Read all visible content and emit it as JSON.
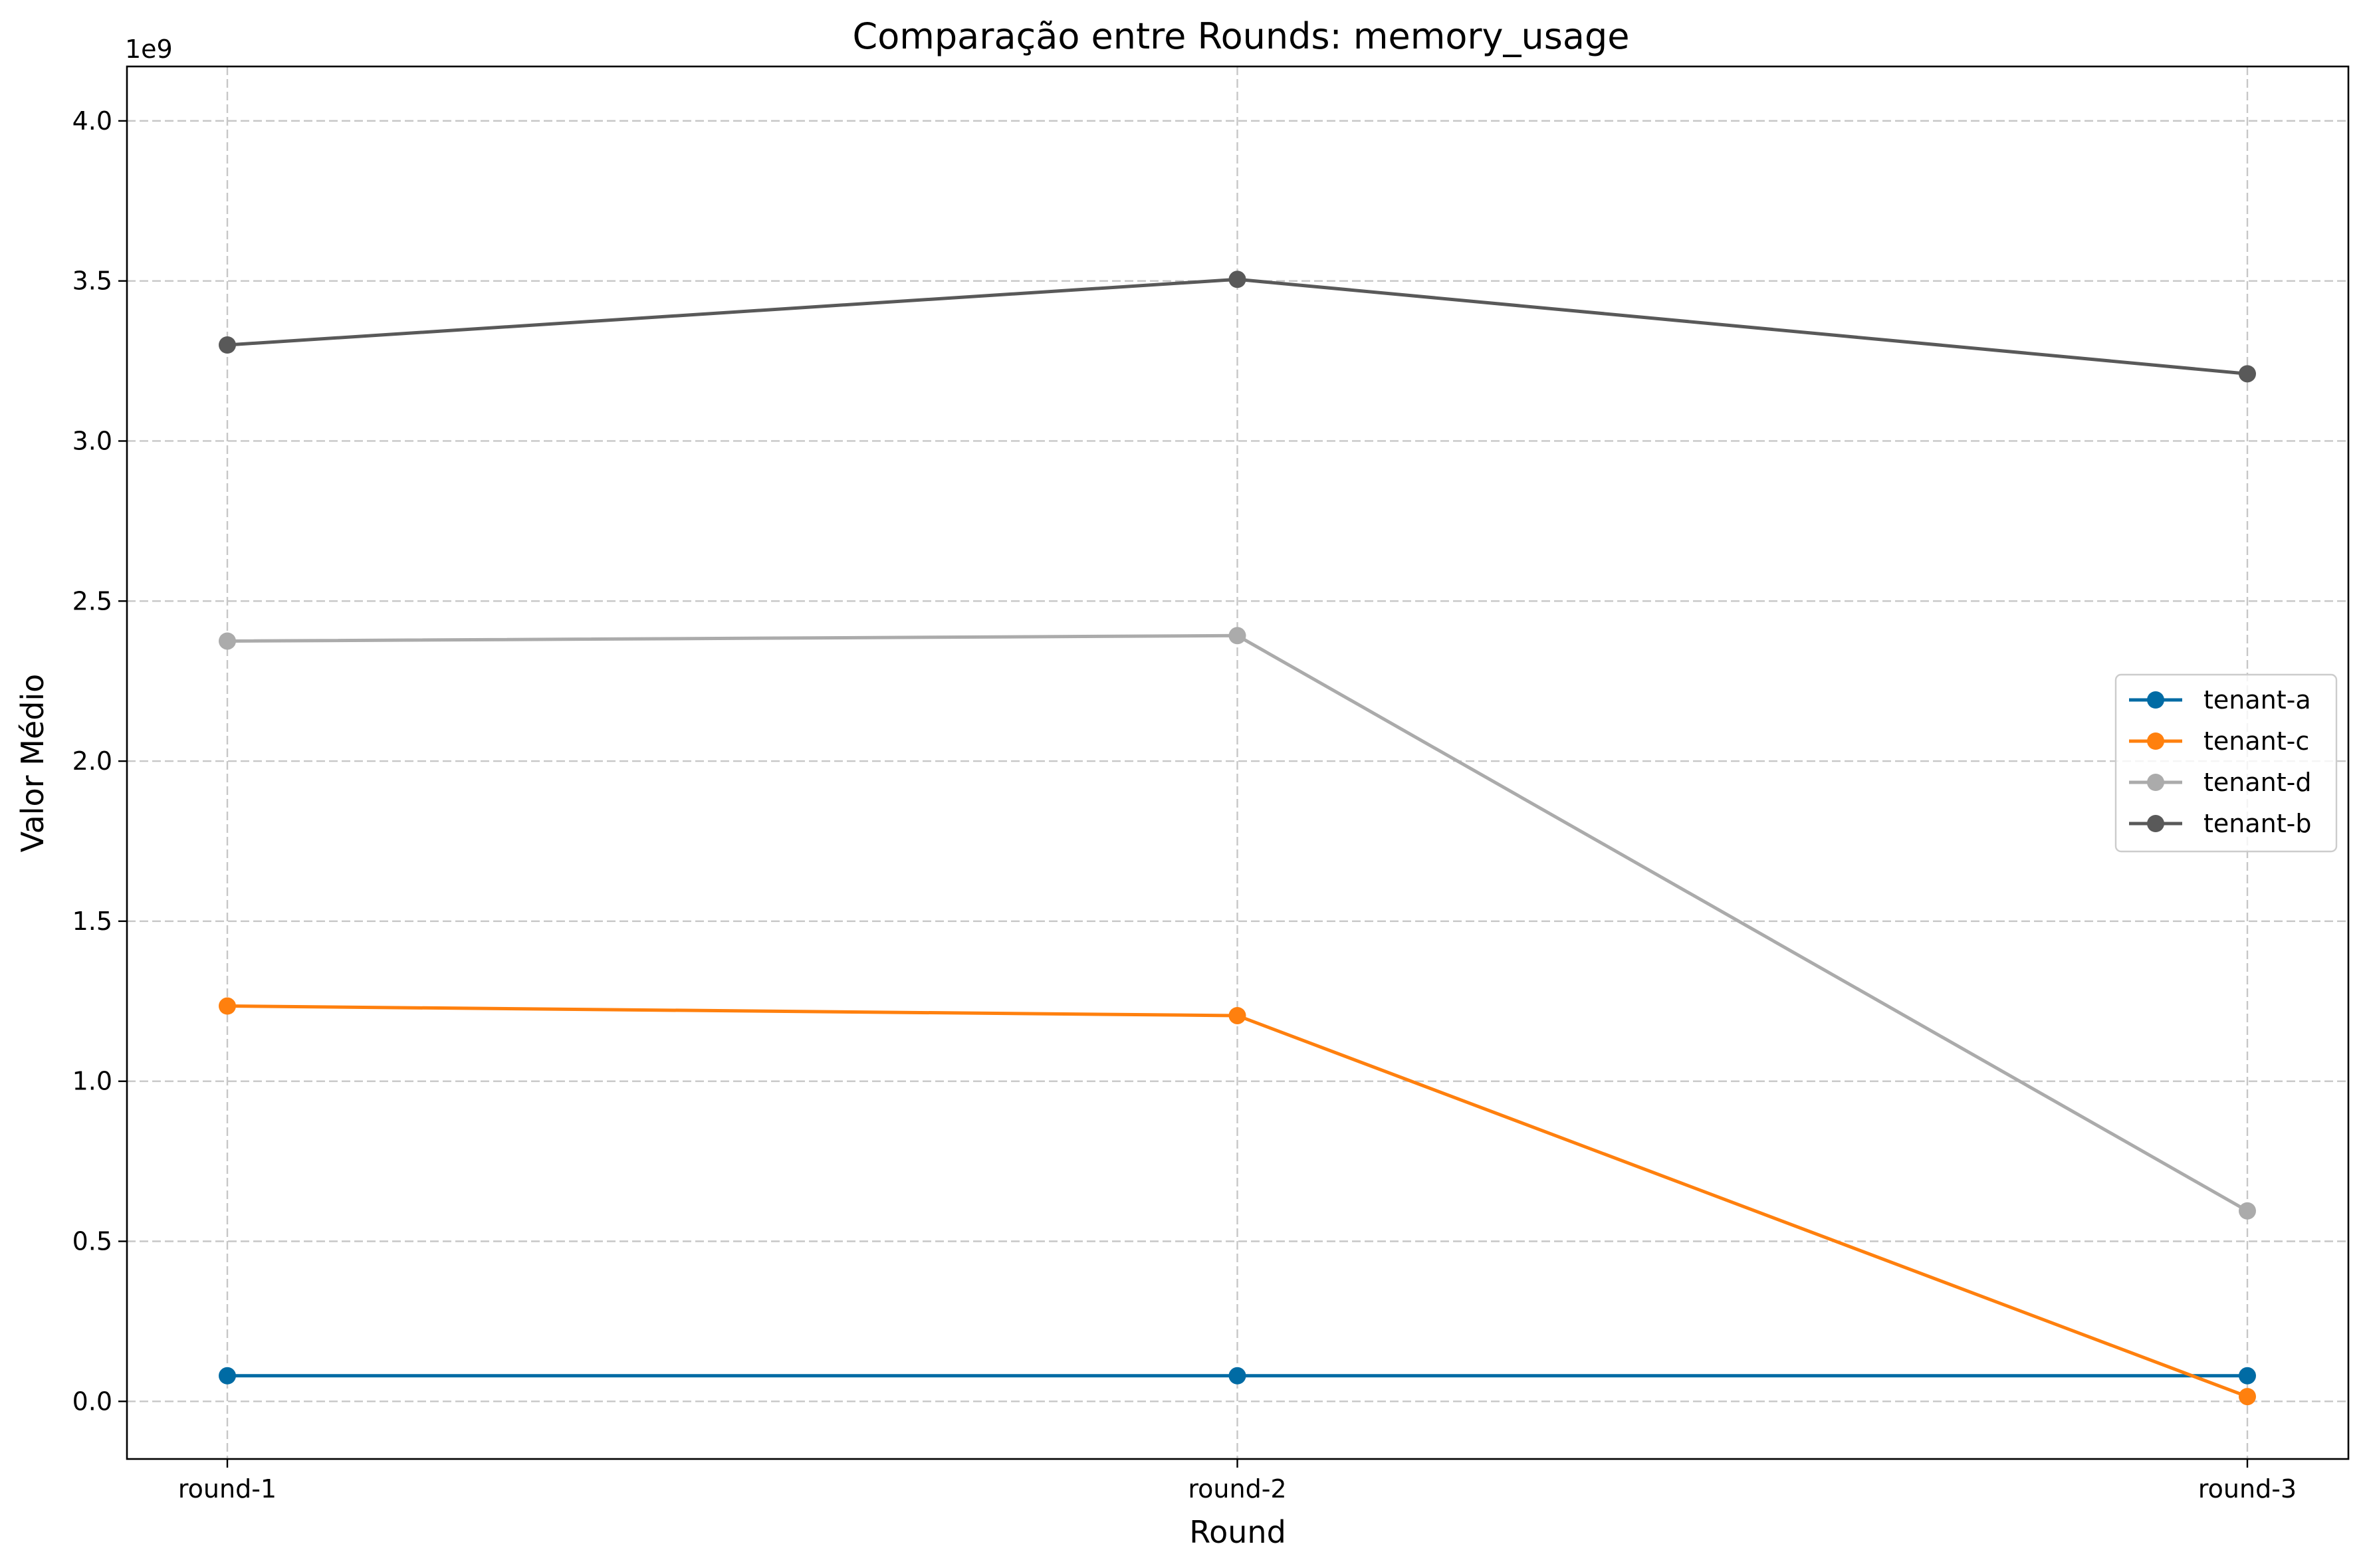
{
  "chart_data": {
    "type": "line",
    "title": "Comparação entre Rounds: memory_usage",
    "xlabel": "Round",
    "ylabel": "Valor Médio",
    "offset_label": "1e9",
    "categories": [
      "round-1",
      "round-2",
      "round-3"
    ],
    "ylim": [
      -0.18,
      4.17
    ],
    "yticks": [
      0.0,
      0.5,
      1.0,
      1.5,
      2.0,
      2.5,
      3.0,
      3.5,
      4.0
    ],
    "ytick_labels": [
      "0.0",
      "0.5",
      "1.0",
      "1.5",
      "2.0",
      "2.5",
      "3.0",
      "3.5",
      "4.0"
    ],
    "grid": true,
    "legend_position": "center-right",
    "series": [
      {
        "name": "tenant-a",
        "color": "#006BA4",
        "values": [
          0.08,
          0.08,
          0.08
        ]
      },
      {
        "name": "tenant-c",
        "color": "#FF800E",
        "values": [
          1.235,
          1.205,
          0.015
        ]
      },
      {
        "name": "tenant-d",
        "color": "#ABABAB",
        "values": [
          2.375,
          2.392,
          0.595
        ]
      },
      {
        "name": "tenant-b",
        "color": "#595959",
        "values": [
          3.3,
          3.505,
          3.21
        ]
      }
    ]
  }
}
